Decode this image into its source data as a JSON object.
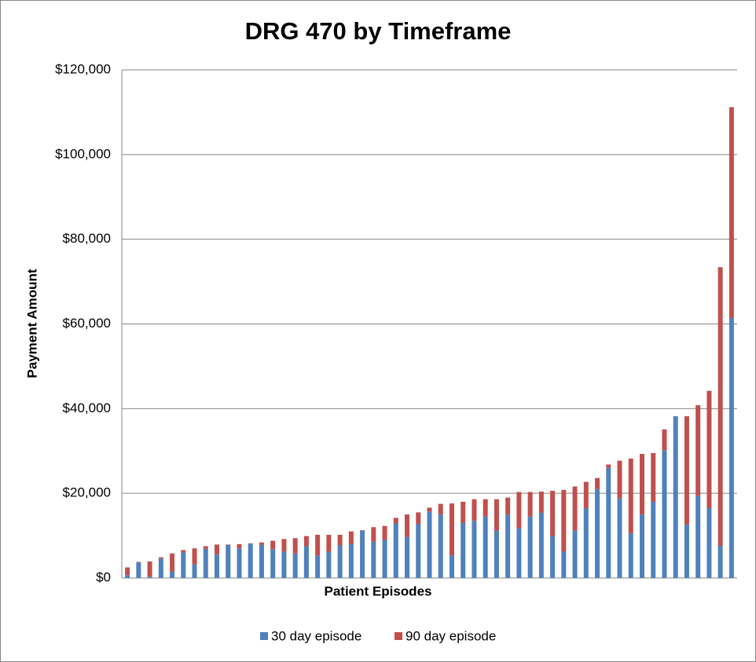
{
  "chart_data": {
    "type": "stacked_bar",
    "title": "DRG 470 by Timeframe",
    "x_label": "Patient Episodes",
    "y_label": "Payment Amount",
    "categories": [
      null,
      null,
      null,
      null,
      null,
      null,
      null,
      null,
      null,
      null,
      null,
      null,
      null,
      null,
      null,
      null,
      null,
      null,
      null,
      null,
      null,
      null,
      null,
      null,
      null,
      null,
      null,
      null,
      null,
      null,
      null,
      null,
      null,
      null,
      null,
      null,
      null,
      null,
      null,
      null,
      null,
      null,
      null,
      null,
      null,
      null,
      null,
      null,
      null,
      null,
      null,
      null,
      null,
      null,
      null
    ],
    "series": [
      {
        "name": "30 day episode",
        "color": "#4f81bd",
        "values": [
          700,
          3700,
          300,
          4600,
          1500,
          6000,
          3200,
          6900,
          5500,
          7700,
          7000,
          8100,
          7800,
          6800,
          6200,
          5800,
          7500,
          5300,
          6200,
          7700,
          8000,
          11200,
          8600,
          9000,
          12900,
          9700,
          12700,
          15700,
          15000,
          5300,
          13000,
          13500,
          14500,
          11200,
          15000,
          11700,
          14500,
          15400,
          9900,
          6300,
          11200,
          16500,
          21000,
          26000,
          18800,
          10600,
          15000,
          18000,
          30200,
          38200,
          12600,
          19400,
          16500,
          7600,
          61400
        ]
      },
      {
        "name": "90 day episode",
        "color": "#c0504d",
        "values": [
          1800,
          100,
          3600,
          300,
          4300,
          600,
          3800,
          600,
          2400,
          200,
          1000,
          100,
          600,
          2000,
          3000,
          3600,
          2400,
          4900,
          4000,
          2500,
          3000,
          100,
          3400,
          3300,
          1300,
          5300,
          2800,
          900,
          2500,
          12300,
          5000,
          5100,
          4100,
          7400,
          4000,
          8600,
          5800,
          5000,
          10700,
          14500,
          10400,
          6200,
          2600,
          800,
          8900,
          17600,
          14300,
          11500,
          4900,
          0,
          25600,
          21400,
          27700,
          65800,
          49800
        ]
      }
    ],
    "ylim": [
      0,
      120000
    ],
    "yticks": [
      {
        "value": 0,
        "label": "$0"
      },
      {
        "value": 20000,
        "label": "$20,000"
      },
      {
        "value": 40000,
        "label": "$40,000"
      },
      {
        "value": 60000,
        "label": "$60,000"
      },
      {
        "value": 80000,
        "label": "$80,000"
      },
      {
        "value": 100000,
        "label": "$100,000"
      },
      {
        "value": 120000,
        "label": "$120,000"
      }
    ],
    "grid": true,
    "legend": "bottom"
  }
}
